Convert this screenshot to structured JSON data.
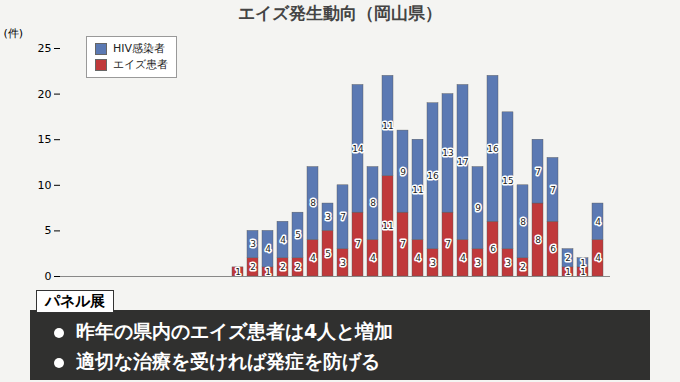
{
  "chart_data": {
    "type": "bar",
    "title": "エイズ発生動向（岡山県）",
    "y_label": "(件)",
    "annotations": [
      "パネル展",
      "昨年の県内のエイズ患者は4人と増加",
      "適切な治療を受ければ発症を防げる"
    ],
    "categories": [
      null,
      null,
      null,
      null,
      null,
      null,
      null,
      null,
      null,
      null,
      null,
      null,
      null,
      null,
      null,
      null,
      null,
      null,
      null,
      null,
      null,
      null,
      null,
      null,
      null,
      null,
      null,
      null,
      null,
      null,
      null,
      null,
      null,
      null,
      null,
      null
    ],
    "series": [
      {
        "name": "HIV感染者",
        "color": "#5b79b3",
        "values": [
          0,
          0,
          0,
          0,
          0,
          0,
          0,
          0,
          0,
          0,
          0,
          0,
          3,
          4,
          4,
          5,
          8,
          3,
          7,
          14,
          8,
          11,
          9,
          11,
          16,
          13,
          17,
          9,
          16,
          15,
          8,
          7,
          7,
          2,
          1,
          4
        ]
      },
      {
        "name": "エイズ患者",
        "color": "#c0393b",
        "values": [
          0,
          0,
          0,
          0,
          0,
          0,
          0,
          0,
          0,
          0,
          0,
          1,
          2,
          1,
          2,
          2,
          4,
          5,
          3,
          7,
          4,
          11,
          7,
          4,
          3,
          7,
          4,
          3,
          6,
          3,
          2,
          8,
          6,
          1,
          1,
          4
        ]
      }
    ],
    "stacked": true,
    "data_labels": true,
    "legend": "top-left",
    "grid": false,
    "ylim": [
      0,
      25
    ],
    "yticks": [
      0,
      5,
      10,
      15,
      20,
      25
    ]
  }
}
